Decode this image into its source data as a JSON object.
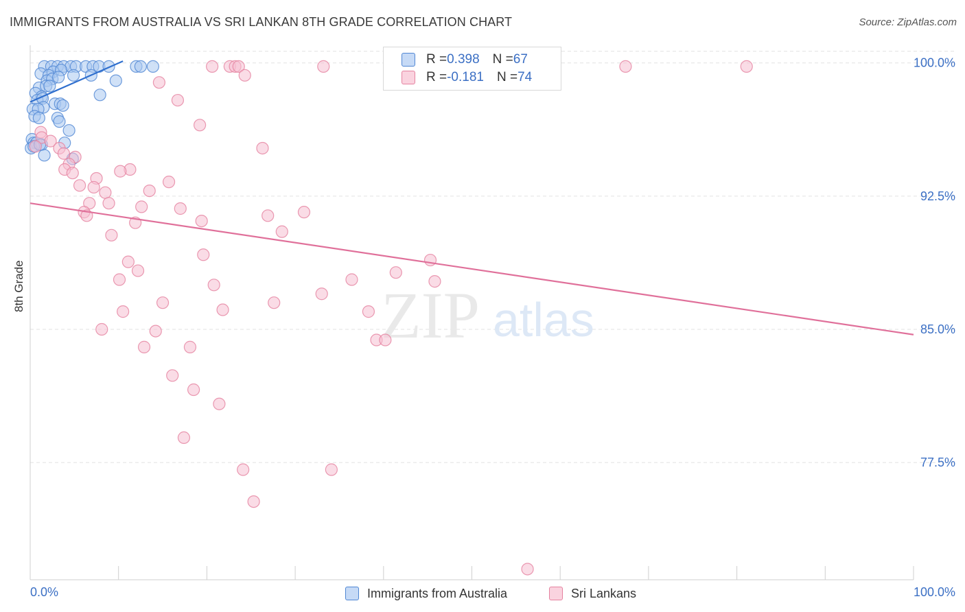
{
  "title": "IMMIGRANTS FROM AUSTRALIA VS SRI LANKAN 8TH GRADE CORRELATION CHART",
  "source": "Source: ZipAtlas.com",
  "watermark": {
    "zip": "ZIP",
    "atlas": "atlas"
  },
  "legend_top": [
    {
      "r_label": "R = ",
      "r_value": "0.398",
      "n_label": "N = ",
      "n_value": "67"
    },
    {
      "r_label": "R = ",
      "r_value": "-0.181",
      "n_label": "N = ",
      "n_value": "74"
    }
  ],
  "colors": {
    "blue_fill": "#a9c8f0",
    "blue_stroke": "#4f86d3",
    "blue_line": "#2f6fce",
    "pink_fill": "#f6c0d1",
    "pink_stroke": "#e5819f",
    "pink_line": "#e0709a",
    "tick_text": "#3b6fc4",
    "grid": "#e2e2e2"
  },
  "chart_data": {
    "type": "scatter",
    "title": "IMMIGRANTS FROM AUSTRALIA VS SRI LANKAN 8TH GRADE CORRELATION CHART",
    "xlabel": "",
    "ylabel": "8th Grade",
    "xlim": [
      0,
      100
    ],
    "ylim": [
      70.9,
      100.8
    ],
    "x_tick_labels": [
      "0.0%",
      "100.0%"
    ],
    "y_ticks": [
      {
        "value": 100.0,
        "label": "100.0%"
      },
      {
        "value": 92.5,
        "label": "92.5%"
      },
      {
        "value": 85.0,
        "label": "85.0%"
      },
      {
        "value": 77.5,
        "label": "77.5%"
      }
    ],
    "grid": true,
    "legend_position": "bottom",
    "series": [
      {
        "name": "Immigrants from Australia",
        "color": "#4f86d3",
        "r": 0.398,
        "n": 67,
        "trend": {
          "x": [
            0,
            10.5
          ],
          "y": [
            97.8,
            100.1
          ]
        },
        "points": [
          [
            1.6,
            99.8
          ],
          [
            2.4,
            99.8
          ],
          [
            3.1,
            99.8
          ],
          [
            3.8,
            99.8
          ],
          [
            4.6,
            99.8
          ],
          [
            5.2,
            99.8
          ],
          [
            6.3,
            99.8
          ],
          [
            7.1,
            99.8
          ],
          [
            7.8,
            99.8
          ],
          [
            8.9,
            99.8
          ],
          [
            12.0,
            99.8
          ],
          [
            12.5,
            99.8
          ],
          [
            13.9,
            99.8
          ],
          [
            2.6,
            99.5
          ],
          [
            3.5,
            99.6
          ],
          [
            1.2,
            99.4
          ],
          [
            2.1,
            99.3
          ],
          [
            4.9,
            99.3
          ],
          [
            6.9,
            99.3
          ],
          [
            1.9,
            99.0
          ],
          [
            2.5,
            99.1
          ],
          [
            3.2,
            99.2
          ],
          [
            9.7,
            99.0
          ],
          [
            1.0,
            98.6
          ],
          [
            1.8,
            98.7
          ],
          [
            2.2,
            98.7
          ],
          [
            0.6,
            98.3
          ],
          [
            1.3,
            98.1
          ],
          [
            7.9,
            98.2
          ],
          [
            0.8,
            97.9
          ],
          [
            1.4,
            98.0
          ],
          [
            2.8,
            97.7
          ],
          [
            3.4,
            97.7
          ],
          [
            3.7,
            97.6
          ],
          [
            1.5,
            97.5
          ],
          [
            0.3,
            97.4
          ],
          [
            0.9,
            97.4
          ],
          [
            0.5,
            97.0
          ],
          [
            1.0,
            96.9
          ],
          [
            3.1,
            96.9
          ],
          [
            3.3,
            96.7
          ],
          [
            4.4,
            96.2
          ],
          [
            0.2,
            95.7
          ],
          [
            0.4,
            95.5
          ],
          [
            0.7,
            95.5
          ],
          [
            1.3,
            95.4
          ],
          [
            3.9,
            95.5
          ],
          [
            0.1,
            95.2
          ],
          [
            0.4,
            95.3
          ],
          [
            1.1,
            95.4
          ],
          [
            1.6,
            94.8
          ],
          [
            4.8,
            94.6
          ]
        ]
      },
      {
        "name": "Sri Lankans",
        "color": "#e5819f",
        "r": -0.181,
        "n": 74,
        "trend": {
          "x": [
            0,
            100
          ],
          "y": [
            92.1,
            84.7
          ]
        },
        "points": [
          [
            20.6,
            99.8
          ],
          [
            22.6,
            99.8
          ],
          [
            23.2,
            99.8
          ],
          [
            23.6,
            99.8
          ],
          [
            33.2,
            99.8
          ],
          [
            67.4,
            99.8
          ],
          [
            81.1,
            99.8
          ],
          [
            24.3,
            99.3
          ],
          [
            14.6,
            98.9
          ],
          [
            16.7,
            97.9
          ],
          [
            19.2,
            96.5
          ],
          [
            26.3,
            95.2
          ],
          [
            1.2,
            96.1
          ],
          [
            1.3,
            95.8
          ],
          [
            2.3,
            95.6
          ],
          [
            0.6,
            95.3
          ],
          [
            3.3,
            95.2
          ],
          [
            3.8,
            94.9
          ],
          [
            5.1,
            94.7
          ],
          [
            4.4,
            94.3
          ],
          [
            3.9,
            94.0
          ],
          [
            4.8,
            93.8
          ],
          [
            11.3,
            94.0
          ],
          [
            10.2,
            93.9
          ],
          [
            7.5,
            93.5
          ],
          [
            15.7,
            93.3
          ],
          [
            7.2,
            93.0
          ],
          [
            5.6,
            93.1
          ],
          [
            13.5,
            92.8
          ],
          [
            8.5,
            92.7
          ],
          [
            6.7,
            92.1
          ],
          [
            8.9,
            92.1
          ],
          [
            12.6,
            91.9
          ],
          [
            17.0,
            91.8
          ],
          [
            6.1,
            91.6
          ],
          [
            6.4,
            91.4
          ],
          [
            26.9,
            91.4
          ],
          [
            31.0,
            91.6
          ],
          [
            19.4,
            91.1
          ],
          [
            11.9,
            91.0
          ],
          [
            28.5,
            90.5
          ],
          [
            9.2,
            90.3
          ],
          [
            19.6,
            89.2
          ],
          [
            11.1,
            88.8
          ],
          [
            45.3,
            88.9
          ],
          [
            12.2,
            88.3
          ],
          [
            41.4,
            88.2
          ],
          [
            10.1,
            87.8
          ],
          [
            36.4,
            87.8
          ],
          [
            45.8,
            87.7
          ],
          [
            20.8,
            87.5
          ],
          [
            33.0,
            87.0
          ],
          [
            15.0,
            86.5
          ],
          [
            27.6,
            86.5
          ],
          [
            10.5,
            86.0
          ],
          [
            21.8,
            86.1
          ],
          [
            38.3,
            86.0
          ],
          [
            8.1,
            85.0
          ],
          [
            14.2,
            84.9
          ],
          [
            39.2,
            84.4
          ],
          [
            40.2,
            84.4
          ],
          [
            12.9,
            84.0
          ],
          [
            18.1,
            84.0
          ],
          [
            16.1,
            82.4
          ],
          [
            18.5,
            81.6
          ],
          [
            21.4,
            80.8
          ],
          [
            17.4,
            78.9
          ],
          [
            24.1,
            77.1
          ],
          [
            34.1,
            77.1
          ],
          [
            25.3,
            75.3
          ],
          [
            56.3,
            71.5
          ]
        ]
      }
    ]
  }
}
